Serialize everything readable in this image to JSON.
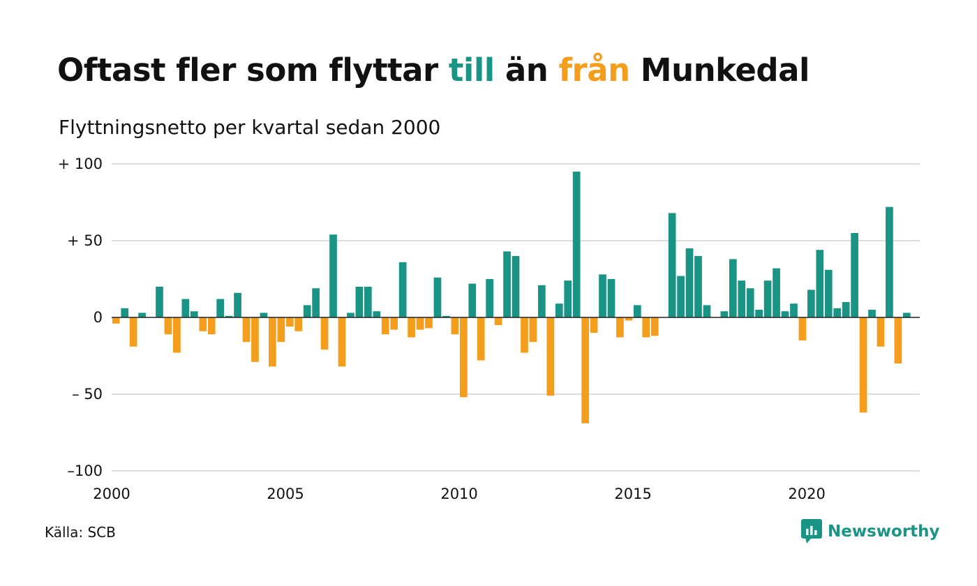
{
  "header": {
    "title_part1": "Oftast fler som flyttar ",
    "title_pos": "till",
    "title_part2": " än ",
    "title_neg": "från",
    "title_part3": " Munkedal",
    "subtitle": "Flyttningsnetto per kvartal sedan 2000"
  },
  "footer": {
    "source": "Källa: SCB",
    "brand": "Newsworthy",
    "brand_icon": "newsworthy-logo-icon"
  },
  "colors": {
    "positive": "#1a9585",
    "negative": "#f59e1e",
    "grid": "#dddddd",
    "zero_line": "#222222"
  },
  "chart_data": {
    "type": "bar",
    "title": "Oftast fler som flyttar till än från Munkedal",
    "subtitle": "Flyttningsnetto per kvartal sedan 2000",
    "x_start": "2000 Q1",
    "x_range": [
      2000,
      2023.25
    ],
    "ylim": [
      -100,
      100
    ],
    "y_ticks": [
      100,
      50,
      0,
      -50,
      -100
    ],
    "y_tick_labels": [
      "+ 100",
      "+  50",
      "0",
      "– 50",
      "–100"
    ],
    "x_ticks": [
      2000,
      2005,
      2010,
      2015,
      2020
    ],
    "x_tick_labels": [
      "2000",
      "2005",
      "2010",
      "2015",
      "2020"
    ],
    "grid": true,
    "legend": "none",
    "values": [
      -4,
      6,
      -19,
      3,
      0,
      20,
      -11,
      -23,
      12,
      4,
      -9,
      -11,
      12,
      1,
      16,
      -16,
      -29,
      3,
      -32,
      -16,
      -6,
      -9,
      8,
      19,
      -21,
      54,
      -32,
      3,
      20,
      20,
      4,
      -11,
      -8,
      36,
      -13,
      -8,
      -7,
      26,
      1,
      -11,
      -52,
      22,
      -28,
      25,
      -5,
      43,
      40,
      -23,
      -16,
      21,
      -51,
      9,
      24,
      95,
      -69,
      -10,
      28,
      25,
      -13,
      -2,
      8,
      -13,
      -12,
      0,
      68,
      27,
      45,
      40,
      8,
      0,
      4,
      38,
      24,
      19,
      5,
      24,
      32,
      4,
      9,
      -15,
      18,
      44,
      31,
      6,
      10,
      55,
      -62,
      5,
      -19,
      72,
      -30,
      3
    ]
  }
}
